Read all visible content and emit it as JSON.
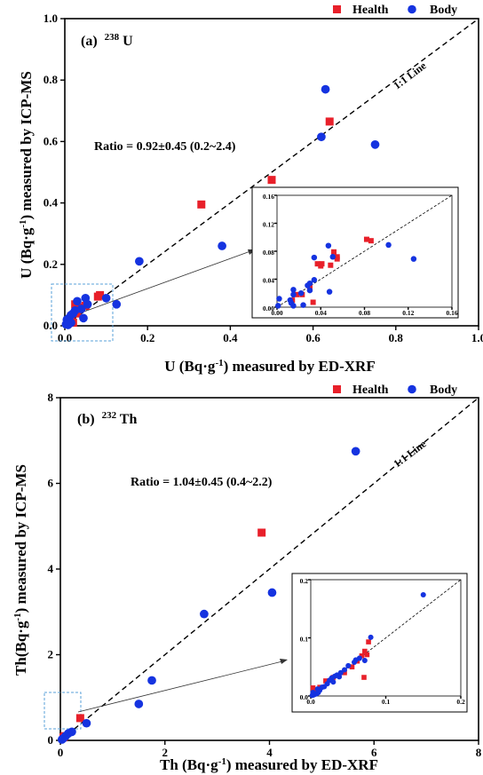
{
  "colors": {
    "health": "#e8202a",
    "body": "#1533e0",
    "zoom_box": "#5aa0d8"
  },
  "legend": {
    "health": "Health",
    "body": "Body"
  },
  "chart_data": [
    {
      "type": "scatter",
      "panel_label": "(a)",
      "isotope_mass": "238",
      "isotope_symbol": "U",
      "xlabel": "U (Bq·g⁻¹) measured by ED-XRF",
      "ylabel": "U (Bq·g⁻¹) measured by ICP-MS",
      "xlim": [
        0,
        1.0
      ],
      "ylim": [
        0,
        1.0
      ],
      "xticks": [
        "0.0",
        "0.2",
        "0.4",
        "0.6",
        "0.8",
        "1.0"
      ],
      "yticks": [
        "0.0",
        "0.2",
        "0.4",
        "0.6",
        "0.8",
        "1.0"
      ],
      "ratio_text": "Ratio = 0.92±0.45 (0.2~2.4)",
      "line_label": "1:1 Line",
      "series": [
        {
          "name": "Health",
          "marker": "square",
          "points": [
            [
              0.64,
              0.665
            ],
            [
              0.5,
              0.475
            ],
            [
              0.33,
              0.395
            ],
            [
              0.085,
              0.1
            ],
            [
              0.08,
              0.095
            ],
            [
              0.05,
              0.065
            ],
            [
              0.04,
              0.06
            ],
            [
              0.035,
              0.06
            ],
            [
              0.025,
              0.07
            ],
            [
              0.02,
              0.01
            ],
            [
              0.015,
              0.03
            ],
            [
              0.03,
              0.04
            ]
          ]
        },
        {
          "name": "Body",
          "marker": "circle",
          "points": [
            [
              0.63,
              0.77
            ],
            [
              0.62,
              0.615
            ],
            [
              0.75,
              0.59
            ],
            [
              0.38,
              0.26
            ],
            [
              0.18,
              0.21
            ],
            [
              0.125,
              0.07
            ],
            [
              0.1,
              0.09
            ],
            [
              0.05,
              0.09
            ],
            [
              0.045,
              0.025
            ],
            [
              0.03,
              0.08
            ],
            [
              0.025,
              0.05
            ],
            [
              0.02,
              0.04
            ],
            [
              0.015,
              0.035
            ],
            [
              0.01,
              0.025
            ],
            [
              0.015,
              0.01
            ],
            [
              0.005,
              0.02
            ],
            [
              0.003,
              0.005
            ],
            [
              0.008,
              0.003
            ],
            [
              0.04,
              0.055
            ],
            [
              0.055,
              0.07
            ]
          ]
        }
      ],
      "inset": {
        "xlim": [
          0,
          0.16
        ],
        "ylim": [
          0,
          0.16
        ],
        "xticks": [
          "0.00",
          "0.04",
          "0.08",
          "0.12",
          "0.16"
        ],
        "yticks": [
          "0.00",
          "0.04",
          "0.08",
          "0.12",
          "0.16"
        ],
        "series": [
          {
            "name": "Health",
            "marker": "square",
            "points": [
              [
                0.082,
                0.097
              ],
              [
                0.086,
                0.095
              ],
              [
                0.052,
                0.079
              ],
              [
                0.055,
                0.072
              ],
              [
                0.055,
                0.069
              ],
              [
                0.041,
                0.062
              ],
              [
                0.037,
                0.062
              ],
              [
                0.049,
                0.06
              ],
              [
                0.04,
                0.059
              ],
              [
                0.03,
                0.031
              ],
              [
                0.03,
                0.026
              ],
              [
                0.033,
                0.007
              ],
              [
                0.018,
                0.018
              ],
              [
                0.023,
                0.018
              ],
              [
                0.014,
                0.01
              ]
            ]
          },
          {
            "name": "Body",
            "marker": "circle",
            "points": [
              [
                0.102,
                0.089
              ],
              [
                0.125,
                0.069
              ],
              [
                0.047,
                0.088
              ],
              [
                0.051,
                0.072
              ],
              [
                0.034,
                0.071
              ],
              [
                0.048,
                0.022
              ],
              [
                0.03,
                0.034
              ],
              [
                0.028,
                0.031
              ],
              [
                0.034,
                0.039
              ],
              [
                0.022,
                0.02
              ],
              [
                0.015,
                0.025
              ],
              [
                0.015,
                0.018
              ],
              [
                0.012,
                0.01
              ],
              [
                0.013,
                0.006
              ],
              [
                0.015,
                0.002
              ],
              [
                0.002,
                0.012
              ],
              [
                0.001,
                0.002
              ],
              [
                0.024,
                0.003
              ],
              [
                0.03,
                0.024
              ]
            ]
          }
        ]
      }
    },
    {
      "type": "scatter",
      "panel_label": "(b)",
      "isotope_mass": "232",
      "isotope_symbol": "Th",
      "xlabel": "Th (Bq·g⁻¹) measured by ED-XRF",
      "ylabel": "Th(Bq·g⁻¹) measured by ICP-MS",
      "xlim": [
        0,
        8
      ],
      "ylim": [
        0,
        8
      ],
      "xticks": [
        "0",
        "2",
        "4",
        "6",
        "8"
      ],
      "yticks": [
        "0",
        "2",
        "4",
        "6",
        "8"
      ],
      "ratio_text": "Ratio = 1.04±0.45 (0.4~2.2)",
      "line_label": "1:1 Line",
      "series": [
        {
          "name": "Health",
          "marker": "square",
          "points": [
            [
              3.85,
              4.85
            ],
            [
              0.38,
              0.52
            ],
            [
              0.08,
              0.1
            ],
            [
              0.06,
              0.07
            ]
          ]
        },
        {
          "name": "Body",
          "marker": "circle",
          "points": [
            [
              5.65,
              6.75
            ],
            [
              4.05,
              3.45
            ],
            [
              2.75,
              2.95
            ],
            [
              1.75,
              1.4
            ],
            [
              1.5,
              0.85
            ],
            [
              0.5,
              0.4
            ],
            [
              0.22,
              0.2
            ],
            [
              0.15,
              0.16
            ],
            [
              0.1,
              0.1
            ],
            [
              0.06,
              0.05
            ],
            [
              0.03,
              0.02
            ]
          ]
        }
      ],
      "inset": {
        "xlim": [
          0,
          0.2
        ],
        "ylim": [
          0,
          0.2
        ],
        "xticks": [
          "0.0",
          "0.1",
          "0.2"
        ],
        "yticks": [
          "0.0",
          "0.1",
          "0.2"
        ],
        "series": [
          {
            "name": "Health",
            "marker": "square",
            "points": [
              [
                0.077,
                0.093
              ],
              [
                0.075,
                0.071
              ],
              [
                0.072,
                0.077
              ],
              [
                0.068,
                0.069
              ],
              [
                0.062,
                0.06
              ],
              [
                0.055,
                0.05
              ],
              [
                0.045,
                0.04
              ],
              [
                0.071,
                0.032
              ],
              [
                0.03,
                0.032
              ],
              [
                0.02,
                0.026
              ],
              [
                0.012,
                0.015
              ],
              [
                0.005,
                0.009
              ],
              [
                0.003,
                0.014
              ]
            ]
          },
          {
            "name": "Body",
            "marker": "circle",
            "points": [
              [
                0.15,
                0.174
              ],
              [
                0.08,
                0.101
              ],
              [
                0.072,
                0.061
              ],
              [
                0.065,
                0.065
              ],
              [
                0.06,
                0.062
              ],
              [
                0.058,
                0.058
              ],
              [
                0.05,
                0.052
              ],
              [
                0.045,
                0.045
              ],
              [
                0.04,
                0.04
              ],
              [
                0.035,
                0.036
              ],
              [
                0.032,
                0.034
              ],
              [
                0.028,
                0.031
              ],
              [
                0.025,
                0.027
              ],
              [
                0.022,
                0.021
              ],
              [
                0.018,
                0.016
              ],
              [
                0.015,
                0.015
              ],
              [
                0.012,
                0.01
              ],
              [
                0.01,
                0.006
              ],
              [
                0.008,
                0.004
              ],
              [
                0.006,
                0.003
              ],
              [
                0.004,
                0.002
              ],
              [
                0.002,
                0.001
              ],
              [
                0.003,
                0.006
              ],
              [
                0.009,
                0.012
              ],
              [
                0.03,
                0.024
              ],
              [
                0.038,
                0.033
              ]
            ]
          }
        ]
      }
    }
  ]
}
